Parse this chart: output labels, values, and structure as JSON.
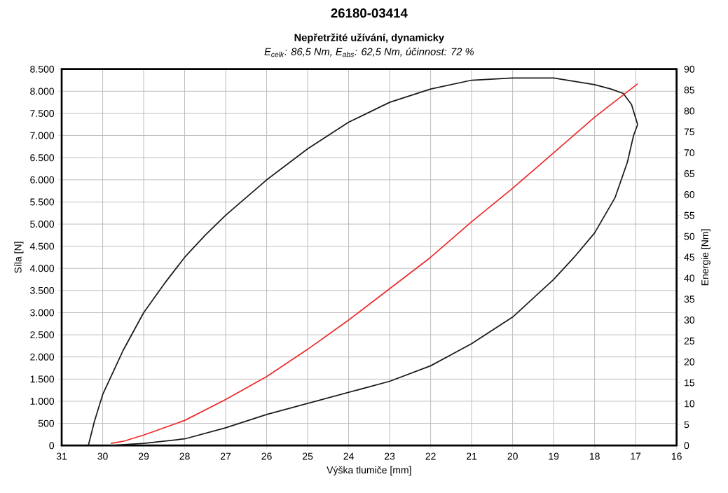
{
  "chart_data": {
    "type": "line",
    "title": "26180-03414",
    "subtitle": "Nepřetržité užívání, dynamicky",
    "annotations": [
      "E$_{celk}$: 86,5 Nm, E$_{abs}$: 62,5 Nm, účinnost: 72 %"
    ],
    "xlabel": "Výška tlumiče [mm]",
    "ylabel": "Síla [N]",
    "y2label": "Energie [Nm]",
    "series": [
      {
        "color": "#1a1a1a",
        "x": [
          30.35,
          30.2,
          30,
          29.5,
          29,
          28.5,
          28,
          27.5,
          27,
          26,
          25,
          24,
          23,
          22,
          21,
          20,
          19,
          18,
          17.6,
          17.3,
          17.1,
          16.95
        ],
        "values": [
          0,
          550,
          1150,
          2150,
          3000,
          3650,
          4250,
          4750,
          5200,
          6000,
          6700,
          7300,
          7750,
          8050,
          8250,
          8300,
          8300,
          8150,
          8050,
          7950,
          7700,
          7250
        ]
      },
      {
        "color": "#1a1a1a",
        "x": [
          16.95,
          17.05,
          17.2,
          17.5,
          18,
          18.5,
          19,
          20,
          21,
          22,
          23,
          24,
          25,
          26,
          27,
          28,
          29,
          29.8
        ],
        "values": [
          7250,
          7000,
          6400,
          5600,
          4800,
          4250,
          3750,
          2900,
          2300,
          1800,
          1450,
          1200,
          950,
          700,
          400,
          150,
          50,
          0
        ]
      },
      {
        "color": "#ee2a2a",
        "axis": "y2",
        "x": [
          29.8,
          29.5,
          29,
          28,
          27,
          26,
          25,
          24,
          23,
          22,
          21,
          20,
          19,
          18,
          16.95
        ],
        "values": [
          0.5,
          1,
          2.5,
          6,
          11,
          16.5,
          23,
          30,
          37.5,
          45,
          53.5,
          61.5,
          70,
          78.5,
          86.5
        ]
      }
    ],
    "xlim": [
      31,
      16
    ],
    "xticks": [
      31,
      30,
      29,
      28,
      27,
      26,
      25,
      24,
      23,
      22,
      21,
      20,
      19,
      18,
      17,
      16
    ],
    "ylim": [
      0,
      8500
    ],
    "yticks": [
      0,
      500,
      {
        "value": 1000,
        "label": "1.000"
      },
      {
        "value": 1500,
        "label": "1.500"
      },
      {
        "value": 2000,
        "label": "2.000"
      },
      {
        "value": 2500,
        "label": "2.500"
      },
      {
        "value": 3000,
        "label": "3.000"
      },
      {
        "value": 3500,
        "label": "3.500"
      },
      {
        "value": 4000,
        "label": "4.000"
      },
      {
        "value": 4500,
        "label": "4.500"
      },
      {
        "value": 5000,
        "label": "5.000"
      },
      {
        "value": 5500,
        "label": "5.500"
      },
      {
        "value": 6000,
        "label": "6.000"
      },
      {
        "value": 6500,
        "label": "6.500"
      },
      {
        "value": 7000,
        "label": "7.000"
      },
      {
        "value": 7500,
        "label": "7.500"
      },
      {
        "value": 8000,
        "label": "8.000"
      },
      {
        "value": 8500,
        "label": "8.500"
      }
    ],
    "y2lim": [
      0,
      90
    ],
    "y2ticks": [
      0,
      5,
      10,
      15,
      20,
      25,
      30,
      35,
      40,
      45,
      50,
      55,
      60,
      65,
      70,
      75,
      80,
      85,
      90
    ],
    "grid": true
  }
}
